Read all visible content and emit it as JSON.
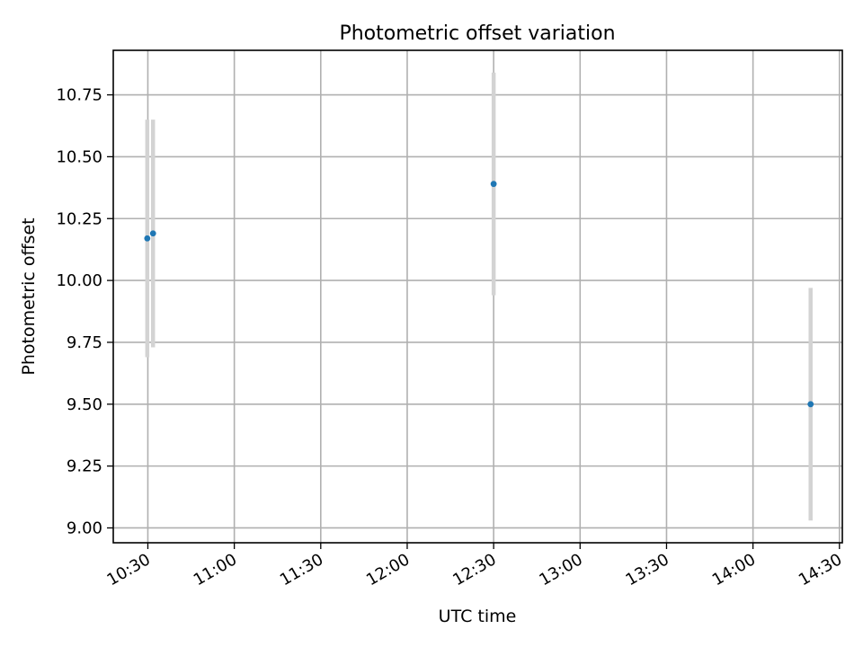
{
  "chart_data": {
    "type": "scatter",
    "title": "Photometric offset variation",
    "xlabel": "UTC time",
    "ylabel": "Photometric offset",
    "grid": true,
    "x_ticks": [
      "10:30",
      "11:00",
      "11:30",
      "12:00",
      "12:30",
      "13:00",
      "13:30",
      "14:00",
      "14:30"
    ],
    "y_ticks": [
      "9.00",
      "9.25",
      "9.50",
      "9.75",
      "10.00",
      "10.25",
      "10.50",
      "10.75"
    ],
    "xlim": [
      "10:18",
      "14:31"
    ],
    "ylim": [
      8.94,
      10.93
    ],
    "points": [
      {
        "x": "10:29.8",
        "y": 10.17,
        "yerr": 0.48
      },
      {
        "x": "10:31.8",
        "y": 10.19,
        "yerr": 0.46
      },
      {
        "x": "12:30",
        "y": 10.39,
        "yerr": 0.45
      },
      {
        "x": "14:20",
        "y": 9.5,
        "yerr": 0.47
      }
    ],
    "colors": {
      "marker": "#1f77b4",
      "errorbar": "#d3d3d3",
      "grid": "#b0b0b0"
    }
  }
}
